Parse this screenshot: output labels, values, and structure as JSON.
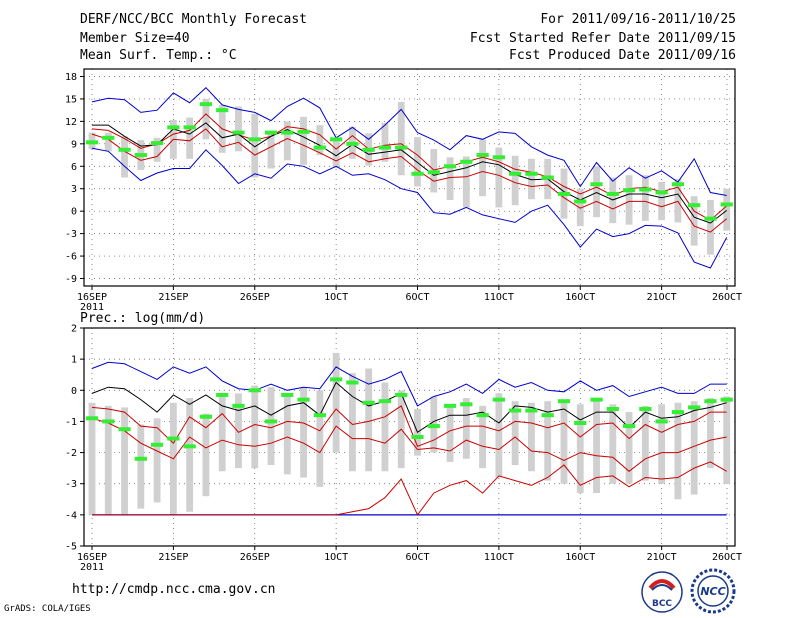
{
  "header": {
    "title": "DERF/NCC/BCC Monthly Forecast",
    "member_size": "Member Size=40",
    "variable": "Mean Surf. Temp.: °C",
    "period": "For 2011/09/16-2011/10/25",
    "refer_date": "Fcst Started Refer Date 2011/09/15",
    "produced_date": "Fcst Produced Date 2011/09/16"
  },
  "footer": {
    "url": "http://cmdp.ncc.cma.gov.cn",
    "grads": "GrADS: COLA/IGES",
    "logo_bcc": "BCC",
    "logo_ncc": "NCC"
  },
  "colors": {
    "ens_mean": "#000000",
    "spread": "#cc0000",
    "extremes": "#0000cc",
    "box": "#d0d0d0",
    "median": "#33ee33",
    "grid": "#555555"
  },
  "chart_data": [
    {
      "type": "line",
      "title": "Mean Surf. Temp.: °C",
      "x": [
        "16SEP",
        "17SEP",
        "18SEP",
        "19SEP",
        "20SEP",
        "21SEP",
        "22SEP",
        "23SEP",
        "24SEP",
        "25SEP",
        "26SEP",
        "27SEP",
        "28SEP",
        "29SEP",
        "30SEP",
        "1OCT",
        "2OCT",
        "3OCT",
        "4OCT",
        "5OCT",
        "6OCT",
        "7OCT",
        "8OCT",
        "9OCT",
        "10OCT",
        "11OCT",
        "12OCT",
        "13OCT",
        "14OCT",
        "15OCT",
        "16OCT",
        "17OCT",
        "18OCT",
        "19OCT",
        "20OCT",
        "21OCT",
        "22OCT",
        "23OCT",
        "24OCT",
        "25OCT"
      ],
      "xtick_labels": [
        "16SEP",
        "21SEP",
        "26SEP",
        "1OCT",
        "6OCT",
        "11OCT",
        "16OCT",
        "21OCT",
        "26OCT"
      ],
      "xtick_sub": "2011",
      "yticks": [
        -9,
        -6,
        -3,
        0,
        3,
        6,
        9,
        12,
        15,
        18
      ],
      "ylim": [
        -10,
        19
      ],
      "series": [
        {
          "name": "max",
          "color": "#0000cc",
          "values": [
            14.6,
            15.1,
            14.9,
            13.2,
            13.5,
            15.8,
            14.5,
            16.5,
            14.2,
            13.6,
            13.2,
            12.1,
            14.0,
            15.1,
            13.8,
            9.8,
            11.2,
            9.6,
            11.5,
            13.6,
            10.5,
            9.5,
            8.2,
            10.1,
            9.6,
            10.6,
            10.4,
            8.6,
            7.5,
            6.8,
            3.3,
            6.5,
            4.0,
            5.8,
            4.4,
            5.4,
            3.9,
            7.0,
            2.5,
            2.1
          ]
        },
        {
          "name": "upper",
          "color": "#cc0000",
          "values": [
            11.0,
            10.8,
            9.7,
            8.4,
            9.0,
            10.3,
            10.8,
            13.0,
            11.0,
            10.2,
            9.5,
            10.0,
            11.3,
            11.0,
            10.2,
            8.3,
            10.1,
            8.3,
            8.8,
            9.0,
            7.5,
            5.5,
            6.0,
            6.6,
            7.2,
            6.6,
            5.6,
            5.2,
            4.6,
            3.3,
            2.3,
            3.2,
            2.1,
            3.0,
            3.2,
            2.6,
            3.2,
            0.0,
            -1.2,
            0.7
          ]
        },
        {
          "name": "mean",
          "color": "#000000",
          "values": [
            11.5,
            11.5,
            10.0,
            8.7,
            8.9,
            11.0,
            10.3,
            11.8,
            9.8,
            10.3,
            8.6,
            10.0,
            10.9,
            9.9,
            8.8,
            7.4,
            8.9,
            7.6,
            7.9,
            8.2,
            6.5,
            4.8,
            5.3,
            5.8,
            6.6,
            6.2,
            4.9,
            4.2,
            4.3,
            2.6,
            1.5,
            2.5,
            1.5,
            2.3,
            2.3,
            1.8,
            2.3,
            -0.8,
            -1.6,
            0.1
          ]
        },
        {
          "name": "lower",
          "color": "#cc0000",
          "values": [
            10.3,
            9.6,
            8.0,
            6.8,
            7.3,
            9.6,
            9.4,
            11.0,
            8.6,
            9.2,
            7.5,
            8.6,
            9.7,
            8.8,
            7.8,
            6.7,
            7.8,
            6.6,
            7.0,
            7.3,
            5.5,
            4.0,
            4.5,
            4.6,
            5.3,
            4.8,
            3.8,
            3.3,
            3.5,
            1.8,
            0.4,
            1.3,
            0.3,
            1.3,
            1.3,
            0.6,
            1.3,
            -2.0,
            -2.8,
            -1.0
          ]
        },
        {
          "name": "min",
          "color": "#0000cc",
          "values": [
            8.4,
            8.0,
            6.0,
            4.1,
            5.1,
            5.7,
            5.7,
            8.2,
            6.1,
            3.7,
            5.0,
            4.4,
            6.3,
            6.0,
            5.0,
            6.0,
            4.8,
            5.0,
            4.2,
            3.0,
            2.5,
            -0.2,
            -0.4,
            0.5,
            -0.5,
            -1.0,
            -1.5,
            0.0,
            0.8,
            -1.8,
            -4.8,
            -2.4,
            -3.4,
            -3.0,
            -1.9,
            -2.0,
            -2.9,
            -6.8,
            -7.6,
            -3.5
          ]
        }
      ],
      "boxes": {
        "top": [
          10.5,
          10.5,
          10.0,
          9.5,
          9.8,
          12.2,
          12.5,
          15.0,
          14.2,
          14.0,
          13.0,
          10.6,
          12.0,
          12.6,
          11.5,
          9.5,
          11.3,
          10.4,
          11.8,
          14.6,
          9.9,
          8.3,
          7.2,
          7.3,
          9.6,
          8.5,
          7.4,
          7.0,
          7.0,
          5.7,
          3.0,
          6.0,
          4.5,
          4.8,
          4.8,
          3.9,
          4.3,
          2.0,
          1.5,
          3.0
        ],
        "bottom": [
          8.3,
          8.0,
          4.5,
          5.5,
          6.6,
          7.0,
          7.0,
          9.6,
          7.8,
          8.0,
          4.5,
          5.7,
          6.8,
          6.2,
          7.5,
          5.8,
          7.0,
          6.1,
          6.6,
          4.8,
          3.3,
          2.5,
          1.5,
          0.5,
          2.0,
          0.5,
          0.8,
          1.6,
          1.6,
          -1.0,
          -2.0,
          -0.8,
          -1.6,
          -1.8,
          -1.3,
          -1.2,
          -1.5,
          -4.6,
          -5.8,
          -2.6
        ],
        "median": [
          9.2,
          9.8,
          8.2,
          7.5,
          9.1,
          11.2,
          11.2,
          14.3,
          13.5,
          10.5,
          9.6,
          10.5,
          10.5,
          10.6,
          8.5,
          9.6,
          9.0,
          8.2,
          8.5,
          8.5,
          5.0,
          5.2,
          6.0,
          6.6,
          7.5,
          7.2,
          5.0,
          5.0,
          4.5,
          2.3,
          1.3,
          3.6,
          2.3,
          2.8,
          2.9,
          2.5,
          3.6,
          0.8,
          -1.0,
          0.9
        ]
      }
    },
    {
      "type": "line",
      "title": "Prec.: log(mm/d)",
      "x": [
        "16SEP",
        "17SEP",
        "18SEP",
        "19SEP",
        "20SEP",
        "21SEP",
        "22SEP",
        "23SEP",
        "24SEP",
        "25SEP",
        "26SEP",
        "27SEP",
        "28SEP",
        "29SEP",
        "30SEP",
        "1OCT",
        "2OCT",
        "3OCT",
        "4OCT",
        "5OCT",
        "6OCT",
        "7OCT",
        "8OCT",
        "9OCT",
        "10OCT",
        "11OCT",
        "12OCT",
        "13OCT",
        "14OCT",
        "15OCT",
        "16OCT",
        "17OCT",
        "18OCT",
        "19OCT",
        "20OCT",
        "21OCT",
        "22OCT",
        "23OCT",
        "24OCT",
        "25OCT"
      ],
      "xtick_labels": [
        "16SEP",
        "21SEP",
        "26SEP",
        "1OCT",
        "6OCT",
        "11OCT",
        "16OCT",
        "21OCT",
        "26OCT"
      ],
      "xtick_sub": "2011",
      "yticks": [
        -5,
        -4,
        -3,
        -2,
        -1,
        0,
        1,
        2
      ],
      "ylim": [
        -5,
        2
      ],
      "series": [
        {
          "name": "max",
          "color": "#0000cc",
          "values": [
            0.7,
            0.9,
            0.85,
            0.6,
            0.35,
            0.75,
            0.55,
            0.75,
            0.3,
            0.05,
            0.0,
            0.2,
            0.0,
            0.1,
            0.05,
            0.75,
            0.45,
            0.2,
            0.35,
            0.6,
            -0.5,
            -0.2,
            -0.05,
            0.2,
            -0.1,
            0.35,
            0.1,
            0.25,
            0.0,
            -0.05,
            0.3,
            0.0,
            0.15,
            -0.2,
            -0.05,
            0.1,
            -0.1,
            -0.1,
            0.2,
            0.2
          ]
        },
        {
          "name": "upper",
          "color": "#000000",
          "values": [
            -0.1,
            0.1,
            0.05,
            -0.3,
            -0.7,
            -0.15,
            -0.45,
            -0.15,
            -0.5,
            -0.65,
            -0.5,
            -0.8,
            -0.5,
            -0.4,
            -0.8,
            0.25,
            -0.2,
            -0.5,
            -0.35,
            -0.1,
            -1.35,
            -1.0,
            -0.8,
            -0.8,
            -0.7,
            -1.05,
            -0.5,
            -0.55,
            -0.7,
            -0.6,
            -0.95,
            -0.7,
            -0.7,
            -1.2,
            -0.7,
            -0.9,
            -0.85,
            -0.65,
            -0.55,
            -0.4
          ]
        },
        {
          "name": "mean",
          "color": "#cc0000",
          "values": [
            -0.55,
            -0.6,
            -0.7,
            -1.15,
            -1.2,
            -1.7,
            -0.85,
            -1.2,
            -0.75,
            -1.35,
            -1.1,
            -1.2,
            -1.0,
            -1.05,
            -1.3,
            -0.6,
            -1.1,
            -1.0,
            -0.85,
            -0.5,
            -1.8,
            -1.6,
            -1.3,
            -1.15,
            -1.15,
            -1.3,
            -1.0,
            -1.05,
            -1.2,
            -1.05,
            -1.5,
            -1.1,
            -1.05,
            -1.55,
            -1.1,
            -1.35,
            -1.1,
            -1.0,
            -0.7,
            -0.7
          ]
        },
        {
          "name": "lower",
          "color": "#cc0000",
          "values": [
            -0.9,
            -1.05,
            -1.3,
            -1.7,
            -1.95,
            -2.2,
            -1.5,
            -1.85,
            -1.6,
            -1.75,
            -1.8,
            -1.7,
            -1.5,
            -1.7,
            -2.0,
            -1.15,
            -1.55,
            -1.55,
            -1.7,
            -1.25,
            -1.9,
            -1.85,
            -1.95,
            -1.6,
            -1.8,
            -1.9,
            -1.5,
            -1.95,
            -2.0,
            -2.25,
            -2.0,
            -2.1,
            -2.15,
            -2.6,
            -2.2,
            -2.0,
            -2.0,
            -1.8,
            -1.6,
            -1.5
          ]
        },
        {
          "name": "min",
          "color": "#cc0000",
          "values": [
            -4.0,
            -4.0,
            -4.0,
            -4.0,
            -4.0,
            -4.0,
            -4.0,
            -4.0,
            -4.0,
            -4.0,
            -4.0,
            -4.0,
            -4.0,
            -4.0,
            -4.0,
            -4.0,
            -3.9,
            -3.8,
            -3.45,
            -2.85,
            -4.0,
            -3.3,
            -3.05,
            -2.9,
            -3.3,
            -2.75,
            -2.9,
            -3.05,
            -2.8,
            -2.4,
            -3.05,
            -2.8,
            -2.75,
            -3.1,
            -2.8,
            -2.85,
            -2.8,
            -2.5,
            -2.3,
            -2.6
          ]
        }
      ],
      "floor_line": {
        "value": -4.0,
        "color": "#0000cc"
      },
      "boxes": {
        "top": [
          -0.4,
          -0.5,
          -0.55,
          -1.1,
          -0.9,
          -0.4,
          -0.25,
          -0.75,
          -0.2,
          -0.1,
          0.15,
          0.1,
          -0.15,
          0.1,
          0.0,
          1.2,
          0.55,
          0.7,
          0.25,
          0.0,
          -0.6,
          -0.2,
          -0.5,
          -0.25,
          -0.5,
          -0.1,
          -0.35,
          -0.4,
          -0.35,
          -0.4,
          -0.45,
          -0.35,
          -0.45,
          -0.7,
          -0.5,
          -0.45,
          -0.4,
          -0.35,
          -0.25,
          -0.2
        ],
        "bottom": [
          -4.0,
          -4.0,
          -4.0,
          -3.8,
          -3.6,
          -4.0,
          -3.9,
          -3.4,
          -2.6,
          -2.5,
          -2.5,
          -2.4,
          -2.7,
          -2.8,
          -3.1,
          -2.0,
          -2.6,
          -2.6,
          -2.6,
          -2.5,
          -2.1,
          -2.0,
          -2.3,
          -2.2,
          -2.5,
          -2.8,
          -2.4,
          -2.6,
          -2.9,
          -3.0,
          -3.3,
          -3.3,
          -3.0,
          -3.0,
          -2.9,
          -3.0,
          -3.5,
          -3.35,
          -2.5,
          -3.0
        ],
        "median": [
          -0.9,
          -1.0,
          -1.25,
          -2.2,
          -1.75,
          -1.55,
          -1.8,
          -0.85,
          -0.15,
          -0.5,
          0.0,
          -1.0,
          -0.15,
          -0.3,
          -0.8,
          0.35,
          0.25,
          -0.4,
          -0.35,
          -0.15,
          -1.5,
          -1.15,
          -0.5,
          -0.45,
          -0.8,
          -0.3,
          -0.65,
          -0.65,
          -0.8,
          -0.35,
          -1.05,
          -0.3,
          -0.6,
          -1.15,
          -0.6,
          -1.0,
          -0.7,
          -0.55,
          -0.35,
          -0.3
        ]
      }
    }
  ]
}
